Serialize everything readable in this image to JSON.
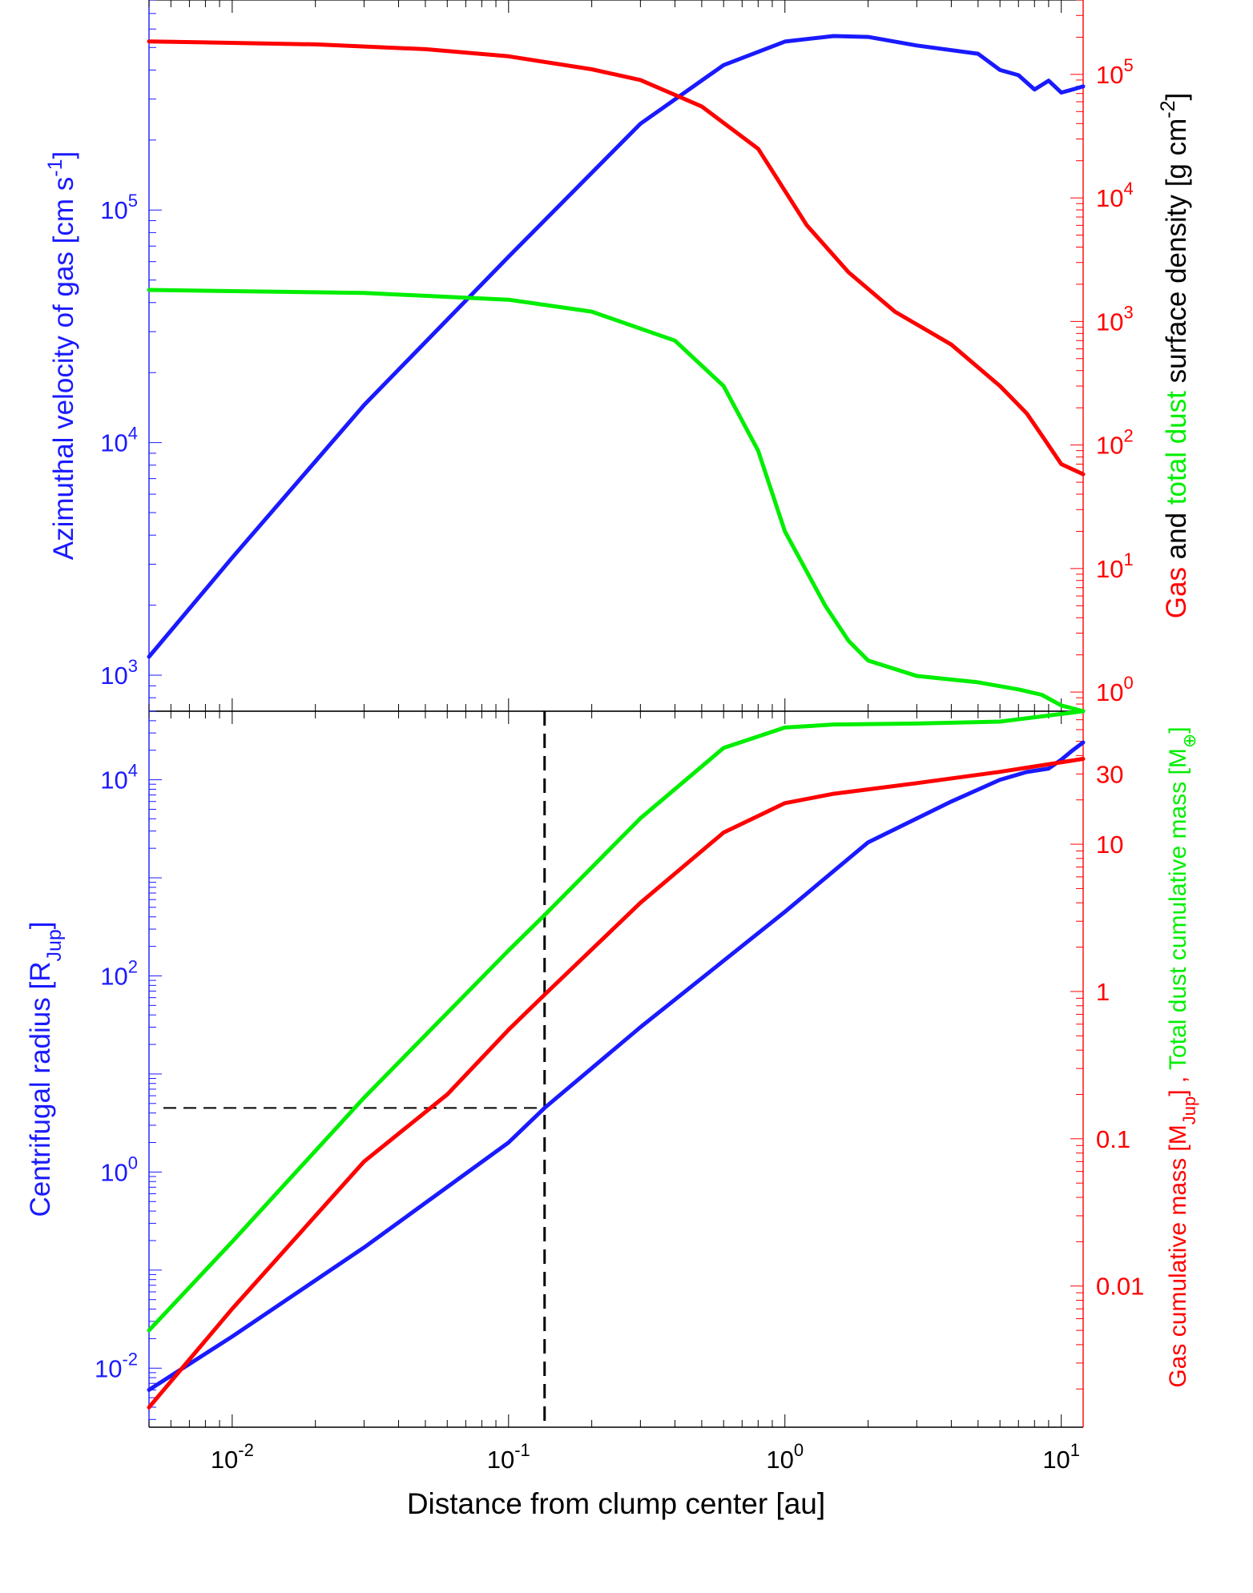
{
  "colors": {
    "blue": "#1a1aff",
    "red": "#ff0000",
    "green": "#00ee00",
    "black": "#000000"
  },
  "chart_data": [
    {
      "type": "line",
      "panel": "top",
      "xscale": "log",
      "xlim": [
        0.005,
        12
      ],
      "left_axis": {
        "scale": "log",
        "ylim": [
          700,
          800000
        ],
        "ticks": [
          {
            "base": "10",
            "exp": "3",
            "value": 1000
          },
          {
            "base": "10",
            "exp": "4",
            "value": 10000
          },
          {
            "base": "10",
            "exp": "5",
            "value": 100000
          }
        ],
        "label_parts": [
          "Azimuthal velocity of gas [cm s",
          "-1",
          "]"
        ]
      },
      "right_axis": {
        "scale": "log",
        "ylim": [
          0.7,
          400000
        ],
        "ticks": [
          {
            "base": "10",
            "exp": "0",
            "value": 1
          },
          {
            "base": "10",
            "exp": "1",
            "value": 10
          },
          {
            "base": "10",
            "exp": "2",
            "value": 100
          },
          {
            "base": "10",
            "exp": "3",
            "value": 1000
          },
          {
            "base": "10",
            "exp": "4",
            "value": 10000
          },
          {
            "base": "10",
            "exp": "5",
            "value": 100000
          }
        ],
        "label_parts": {
          "gas": "Gas",
          "and": " and  ",
          "dust": "total dust",
          "rest": " surface density  [g cm",
          "exp": "-2",
          "close": "]"
        }
      },
      "series": [
        {
          "name": "Azimuthal velocity",
          "color": "blue",
          "axis": "left",
          "x": [
            0.005,
            0.01,
            0.03,
            0.1,
            0.3,
            0.6,
            1.0,
            1.5,
            2.0,
            3.0,
            5.0,
            6.0,
            7.0,
            8.0,
            9.0,
            10.0,
            11.0,
            12.0
          ],
          "y": [
            1200,
            3200,
            14500,
            63000,
            235000,
            420000,
            530000,
            560000,
            555000,
            510000,
            470000,
            400000,
            380000,
            330000,
            360000,
            320000,
            330000,
            340000
          ]
        },
        {
          "name": "Gas surface density",
          "color": "red",
          "axis": "right",
          "x": [
            0.005,
            0.02,
            0.05,
            0.1,
            0.2,
            0.3,
            0.5,
            0.8,
            1.2,
            1.7,
            2.5,
            4.0,
            6.0,
            7.5,
            8.5,
            10.0,
            12.0
          ],
          "y": [
            185000,
            175000,
            160000,
            140000,
            110000,
            90000,
            55000,
            25000,
            6000,
            2500,
            1200,
            650,
            300,
            180,
            120,
            70,
            58
          ]
        },
        {
          "name": "Total dust surface density",
          "color": "green",
          "axis": "right",
          "x": [
            0.005,
            0.03,
            0.1,
            0.2,
            0.4,
            0.6,
            0.8,
            1.0,
            1.4,
            1.7,
            2.0,
            3.0,
            5.0,
            7.0,
            8.5,
            10.0,
            12.0
          ],
          "y": [
            1800,
            1700,
            1500,
            1200,
            700,
            300,
            90,
            20,
            5,
            2.6,
            1.8,
            1.35,
            1.2,
            1.05,
            0.95,
            0.78,
            0.7
          ]
        }
      ]
    },
    {
      "type": "line",
      "panel": "bottom",
      "xscale": "log",
      "xlim": [
        0.005,
        12
      ],
      "xticks": [
        {
          "base": "10",
          "exp": "-2",
          "value": 0.01
        },
        {
          "base": "10",
          "exp": "-1",
          "value": 0.1
        },
        {
          "base": "10",
          "exp": "0",
          "value": 1
        },
        {
          "base": "10",
          "exp": "1",
          "value": 10
        }
      ],
      "xlabel": "Distance from clump center [au]",
      "left_axis": {
        "scale": "log",
        "ylim": [
          0.0025,
          50000
        ],
        "ticks": [
          {
            "base": "10",
            "exp": "-2",
            "value": 0.01
          },
          {
            "base": "10",
            "exp": "0",
            "value": 1
          },
          {
            "base": "10",
            "exp": "2",
            "value": 100
          },
          {
            "base": "10",
            "exp": "4",
            "value": 10000
          }
        ],
        "label_parts": [
          "Centrifugal radius [R",
          "Jup",
          "]"
        ]
      },
      "right_axis": {
        "scale": "log",
        "ylim": [
          0.0011,
          80
        ],
        "ticks": [
          {
            "label": "0.01",
            "value": 0.01
          },
          {
            "label": "0.1",
            "value": 0.1
          },
          {
            "label": "1",
            "value": 1
          },
          {
            "label": "10",
            "value": 10
          },
          {
            "label": "30",
            "value": 30
          }
        ],
        "label_parts": {
          "gas": "Gas cumulative mass [M",
          "gas_sub": "Jup",
          "gas_close": "] , ",
          "dust": "Total dust cumulative mass [M",
          "dust_sub": "⊕",
          "dust_close": "]"
        }
      },
      "series": [
        {
          "name": "Centrifugal radius",
          "color": "blue",
          "axis": "left",
          "x": [
            0.005,
            0.01,
            0.03,
            0.1,
            0.135,
            0.3,
            1.0,
            2.0,
            4.0,
            6.0,
            7.5,
            9.0,
            10.0,
            11.0,
            12.0
          ],
          "y": [
            0.006,
            0.021,
            0.17,
            2.0,
            4.5,
            30,
            450,
            2300,
            6000,
            10000,
            12000,
            13000,
            16000,
            20000,
            24000
          ]
        },
        {
          "name": "Gas cumulative mass",
          "color": "red",
          "axis": "right",
          "x": [
            0.005,
            0.01,
            0.03,
            0.06,
            0.1,
            0.135,
            0.3,
            0.6,
            1.0,
            1.5,
            3.0,
            6.0,
            12.0
          ],
          "y": [
            0.0015,
            0.007,
            0.07,
            0.2,
            0.55,
            0.95,
            4,
            12,
            19,
            22,
            26,
            31,
            38
          ]
        },
        {
          "name": "Total dust cumulative mass",
          "color": "green",
          "axis": "right",
          "x": [
            0.005,
            0.01,
            0.03,
            0.1,
            0.135,
            0.3,
            0.6,
            1.0,
            1.5,
            3.0,
            6.0,
            12.0
          ],
          "y": [
            0.005,
            0.02,
            0.19,
            1.9,
            3.3,
            15,
            45,
            62,
            65,
            66,
            68,
            80
          ]
        }
      ],
      "reference_lines": [
        {
          "orientation": "vertical",
          "x": 0.135,
          "y_from_left_axis": [
            0.0025,
            50000
          ],
          "style": "dashed"
        },
        {
          "orientation": "horizontal",
          "left_value": 4.5,
          "x_range": [
            0.005,
            0.135
          ],
          "style": "dashed"
        }
      ]
    }
  ]
}
